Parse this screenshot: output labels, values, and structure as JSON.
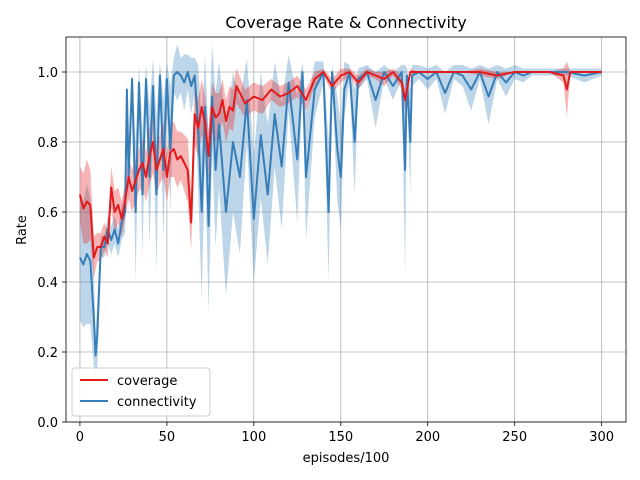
{
  "chart_data": {
    "type": "line",
    "title": "Coverage Rate & Connectivity",
    "xlabel": "episodes/100",
    "ylabel": "Rate",
    "xlim": [
      -8,
      314
    ],
    "ylim": [
      0.0,
      1.1
    ],
    "xticks": [
      0,
      50,
      100,
      150,
      200,
      250,
      300
    ],
    "yticks": [
      0.0,
      0.2,
      0.4,
      0.6,
      0.8,
      1.0
    ],
    "xtick_labels": [
      "0",
      "50",
      "100",
      "150",
      "200",
      "250",
      "300"
    ],
    "ytick_labels": [
      "0.0",
      "0.2",
      "0.4",
      "0.6",
      "0.8",
      "1.0"
    ],
    "grid": true,
    "legend_position": "lower-left",
    "series": [
      {
        "name": "coverage",
        "color": "#e41a1c",
        "x": [
          0,
          2,
          4,
          6,
          8,
          10,
          12,
          14,
          16,
          18,
          20,
          22,
          24,
          26,
          28,
          30,
          32,
          34,
          36,
          38,
          40,
          42,
          44,
          46,
          48,
          50,
          52,
          54,
          56,
          58,
          60,
          62,
          64,
          66,
          68,
          70,
          72,
          74,
          76,
          78,
          80,
          82,
          84,
          86,
          88,
          90,
          95,
          100,
          105,
          110,
          115,
          120,
          125,
          130,
          135,
          140,
          145,
          150,
          155,
          160,
          165,
          170,
          175,
          180,
          185,
          187,
          190,
          195,
          200,
          210,
          220,
          230,
          240,
          250,
          260,
          270,
          278,
          280,
          282,
          285,
          290,
          300
        ],
        "values": [
          0.65,
          0.61,
          0.63,
          0.62,
          0.47,
          0.5,
          0.5,
          0.53,
          0.51,
          0.67,
          0.6,
          0.62,
          0.58,
          0.63,
          0.7,
          0.66,
          0.69,
          0.72,
          0.74,
          0.7,
          0.76,
          0.8,
          0.72,
          0.75,
          0.78,
          0.7,
          0.77,
          0.78,
          0.75,
          0.76,
          0.74,
          0.72,
          0.57,
          0.88,
          0.84,
          0.9,
          0.85,
          0.76,
          0.9,
          0.87,
          0.88,
          0.92,
          0.86,
          0.9,
          0.89,
          0.96,
          0.91,
          0.93,
          0.92,
          0.95,
          0.93,
          0.94,
          0.96,
          0.92,
          0.98,
          1.0,
          0.96,
          0.99,
          1.0,
          0.97,
          1.0,
          0.99,
          0.98,
          1.0,
          0.97,
          0.92,
          1.0,
          1.0,
          1.0,
          1.0,
          1.0,
          1.0,
          0.99,
          1.0,
          1.0,
          1.0,
          0.99,
          0.95,
          1.0,
          1.0,
          1.0,
          1.0
        ],
        "band_width": [
          0.08,
          0.1,
          0.12,
          0.1,
          0.06,
          0.04,
          0.04,
          0.04,
          0.04,
          0.06,
          0.06,
          0.05,
          0.05,
          0.05,
          0.06,
          0.06,
          0.06,
          0.06,
          0.07,
          0.07,
          0.08,
          0.09,
          0.07,
          0.07,
          0.08,
          0.07,
          0.07,
          0.08,
          0.08,
          0.07,
          0.08,
          0.09,
          0.08,
          0.09,
          0.08,
          0.08,
          0.08,
          0.07,
          0.07,
          0.07,
          0.06,
          0.06,
          0.06,
          0.06,
          0.06,
          0.05,
          0.04,
          0.04,
          0.04,
          0.03,
          0.03,
          0.03,
          0.03,
          0.03,
          0.02,
          0.01,
          0.02,
          0.02,
          0.01,
          0.02,
          0.01,
          0.01,
          0.02,
          0.01,
          0.02,
          0.03,
          0.01,
          0.0,
          0.0,
          0.0,
          0.0,
          0.01,
          0.01,
          0.0,
          0.0,
          0.0,
          0.02,
          0.08,
          0.0,
          0.0,
          0.0,
          0.0
        ]
      },
      {
        "name": "connectivity",
        "color": "#377eb8",
        "x": [
          0,
          2,
          4,
          6,
          8,
          9,
          10,
          12,
          14,
          16,
          18,
          20,
          22,
          24,
          26,
          27,
          28,
          30,
          32,
          34,
          36,
          38,
          40,
          42,
          44,
          46,
          48,
          50,
          52,
          54,
          56,
          58,
          60,
          62,
          64,
          66,
          68,
          70,
          72,
          74,
          76,
          78,
          80,
          84,
          88,
          92,
          96,
          100,
          104,
          108,
          112,
          116,
          120,
          125,
          128,
          130,
          135,
          140,
          143,
          145,
          148,
          150,
          152,
          155,
          158,
          160,
          165,
          170,
          175,
          180,
          185,
          187,
          188,
          190,
          191,
          195,
          200,
          205,
          210,
          215,
          220,
          225,
          230,
          235,
          240,
          245,
          250,
          255,
          260,
          270,
          280,
          290,
          300
        ],
        "values": [
          0.47,
          0.45,
          0.48,
          0.46,
          0.3,
          0.19,
          0.25,
          0.5,
          0.5,
          0.55,
          0.52,
          0.55,
          0.51,
          0.57,
          0.6,
          0.95,
          0.7,
          0.98,
          0.6,
          0.97,
          0.65,
          0.98,
          0.7,
          0.96,
          0.65,
          0.99,
          0.72,
          0.98,
          0.78,
          0.99,
          1.0,
          0.99,
          0.97,
          1.0,
          0.96,
          0.99,
          0.84,
          0.6,
          0.9,
          0.56,
          0.93,
          0.72,
          0.85,
          0.6,
          0.8,
          0.7,
          0.92,
          0.58,
          0.82,
          0.65,
          0.88,
          0.73,
          0.97,
          0.75,
          1.0,
          0.7,
          0.95,
          1.0,
          0.6,
          1.0,
          0.78,
          0.7,
          0.95,
          1.0,
          0.8,
          0.98,
          1.0,
          0.92,
          1.0,
          0.96,
          1.0,
          0.72,
          0.99,
          0.8,
          0.99,
          1.0,
          0.98,
          1.0,
          0.94,
          1.0,
          0.99,
          0.95,
          1.0,
          0.93,
          1.0,
          0.97,
          1.0,
          0.99,
          1.0,
          1.0,
          1.0,
          0.99,
          1.0
        ],
        "band_width": [
          0.18,
          0.18,
          0.2,
          0.18,
          0.14,
          0.06,
          0.1,
          0.03,
          0.03,
          0.04,
          0.04,
          0.04,
          0.04,
          0.05,
          0.06,
          0.03,
          0.1,
          0.02,
          0.2,
          0.05,
          0.18,
          0.04,
          0.2,
          0.08,
          0.22,
          0.04,
          0.2,
          0.05,
          0.18,
          0.05,
          0.08,
          0.05,
          0.08,
          0.05,
          0.08,
          0.05,
          0.18,
          0.25,
          0.15,
          0.25,
          0.15,
          0.22,
          0.18,
          0.24,
          0.2,
          0.22,
          0.12,
          0.18,
          0.18,
          0.2,
          0.15,
          0.18,
          0.08,
          0.18,
          0.03,
          0.18,
          0.08,
          0.03,
          0.2,
          0.02,
          0.15,
          0.15,
          0.08,
          0.02,
          0.15,
          0.03,
          0.02,
          0.08,
          0.02,
          0.04,
          0.02,
          0.3,
          0.02,
          0.15,
          0.03,
          0.02,
          0.03,
          0.02,
          0.06,
          0.02,
          0.03,
          0.06,
          0.02,
          0.08,
          0.02,
          0.04,
          0.02,
          0.02,
          0.01,
          0.01,
          0.01,
          0.02,
          0.01
        ]
      }
    ]
  }
}
